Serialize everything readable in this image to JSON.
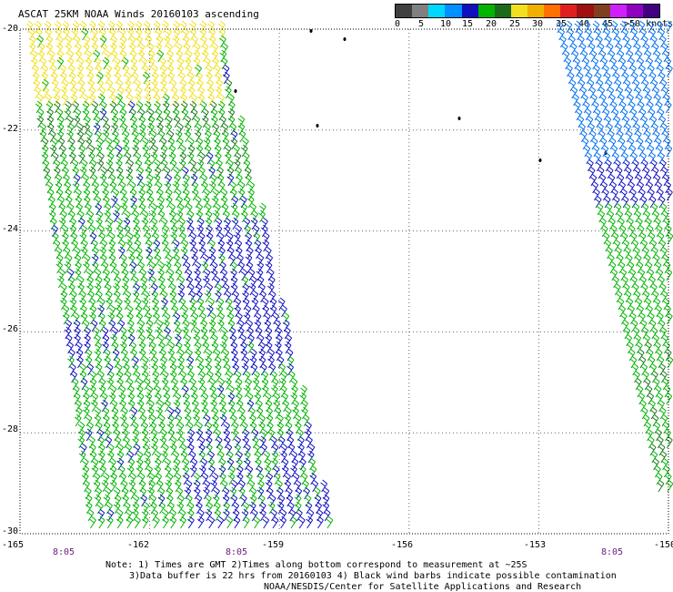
{
  "title": "ASCAT 25KM NOAA Winds 20160103 ascending",
  "legend": {
    "labels": [
      "0",
      "5",
      "10",
      "15",
      "20",
      "25",
      "30",
      "35",
      "40",
      "45",
      ">50 knots"
    ],
    "colors": [
      "#404040",
      "#808080",
      "#00d8ff",
      "#0090ff",
      "#1010c0",
      "#00b400",
      "#1a6a1a",
      "#f0e020",
      "#f0b000",
      "#ff7000",
      "#e02020",
      "#a01010",
      "#804020",
      "#d020ff",
      "#9000c0",
      "#400080"
    ]
  },
  "map": {
    "lat_labels": [
      "-20",
      "-22",
      "-24",
      "-26",
      "-28",
      "-30"
    ],
    "lon_labels": [
      "-165",
      "-162",
      "-159",
      "-156",
      "-153",
      "-150"
    ],
    "lat_range": [
      -30,
      -20
    ],
    "lon_range": [
      -165,
      -150
    ],
    "grid": true,
    "time_labels": [
      "8:05",
      "8:05",
      "8:05"
    ],
    "wind_speed_regions": [
      {
        "region": "northwest swath",
        "speed_knots": "20-25",
        "color": "#f0e020"
      },
      {
        "region": "central swath",
        "speed_knots": "15-20",
        "color": "#00b400"
      },
      {
        "region": "central swath patches",
        "speed_knots": "10-15",
        "color": "#1010c0"
      },
      {
        "region": "east swath north",
        "speed_knots": "10-15",
        "color": "#0090ff"
      }
    ]
  },
  "notes": {
    "line1": "Note: 1) Times are GMT 2)Times along bottom correspond to measurement at ~25S",
    "line2": "3)Data buffer is 22 hrs from 20160103 4) Black wind barbs indicate possible contamination",
    "line3": "NOAA/NESDIS/Center for Satellite Applications and Research"
  }
}
